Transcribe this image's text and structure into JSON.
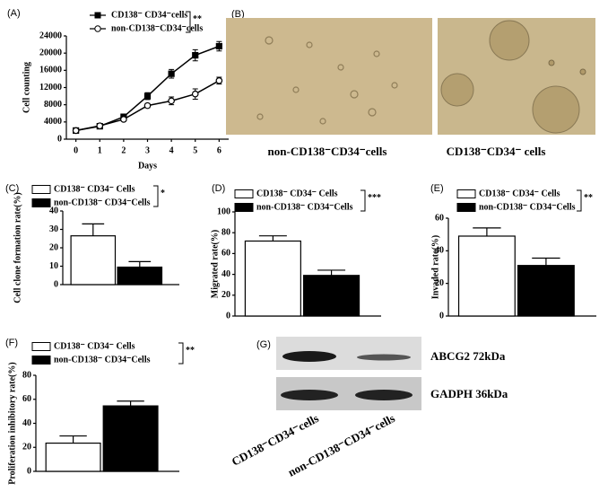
{
  "chart_data": [
    {
      "type": "line",
      "label": "(A)",
      "xlabel": "Days",
      "ylabel": "Cell counting",
      "significance": "**",
      "x": [
        0,
        1,
        2,
        3,
        4,
        5,
        6
      ],
      "xlim": [
        -0.4,
        6.4
      ],
      "xticks": [
        0,
        1,
        2,
        3,
        4,
        5,
        6
      ],
      "ylim": [
        0,
        24000
      ],
      "yticks": [
        0,
        4000,
        8000,
        12000,
        16000,
        20000,
        24000
      ],
      "series": [
        {
          "name": "CD138⁻ CD34⁻cells",
          "color": "#000000",
          "marker": "square",
          "marker_fill": "#000000",
          "values": [
            2000,
            3000,
            5200,
            10000,
            15200,
            19500,
            21600
          ],
          "errors": [
            300,
            400,
            500,
            800,
            1000,
            1300,
            1100
          ]
        },
        {
          "name": "non-CD138⁻CD34⁻cells",
          "color": "#000000",
          "marker": "circle",
          "marker_fill": "#ffffff",
          "values": [
            2000,
            3100,
            4600,
            7800,
            8900,
            10500,
            13600
          ],
          "errors": [
            200,
            300,
            400,
            500,
            900,
            1200,
            800
          ]
        }
      ]
    },
    {
      "type": "bar",
      "label": "(C)",
      "ylabel": "Cell clone formation rate(%)",
      "significance": "*",
      "ylim": [
        0,
        40
      ],
      "yticks": [
        0,
        10,
        20,
        30,
        40
      ],
      "series": [
        {
          "name": "CD138⁻ CD34⁻ Cells",
          "color": "#ffffff",
          "values": [
            26.5
          ],
          "errors": [
            6.5
          ]
        },
        {
          "name": "non-CD138⁻ CD34⁻Cells",
          "color": "#000000",
          "values": [
            9.5
          ],
          "errors": [
            3
          ]
        }
      ]
    },
    {
      "type": "bar",
      "label": "(D)",
      "ylabel": "Migrated rate(%)",
      "significance": "***",
      "ylim": [
        0,
        100
      ],
      "yticks": [
        0,
        20,
        40,
        60,
        80,
        100
      ],
      "series": [
        {
          "name": "CD138⁻ CD34⁻ Cells",
          "color": "#ffffff",
          "values": [
            72
          ],
          "errors": [
            5
          ]
        },
        {
          "name": "non-CD138⁻ CD34⁻Cells",
          "color": "#000000",
          "values": [
            39
          ],
          "errors": [
            5
          ]
        }
      ]
    },
    {
      "type": "bar",
      "label": "(E)",
      "ylabel": "Invaded rate(%)",
      "significance": "**",
      "ylim": [
        0,
        60
      ],
      "yticks": [
        0,
        20,
        40,
        60
      ],
      "series": [
        {
          "name": "CD138⁻ CD34⁻ Cells",
          "color": "#ffffff",
          "values": [
            49
          ],
          "errors": [
            5
          ]
        },
        {
          "name": "non-CD138⁻ CD34⁻Cells",
          "color": "#000000",
          "values": [
            31
          ],
          "errors": [
            4.5
          ]
        }
      ]
    },
    {
      "type": "bar",
      "label": "(F)",
      "ylabel": "Proliferation inhibitory rate(%)",
      "significance": "**",
      "ylim": [
        0,
        80
      ],
      "yticks": [
        0,
        20,
        40,
        60,
        80
      ],
      "series": [
        {
          "name": "CD138⁻ CD34⁻ Cells",
          "color": "#ffffff",
          "values": [
            23.5
          ],
          "errors": [
            6
          ]
        },
        {
          "name": "non-CD138⁻ CD34⁻Cells",
          "color": "#000000",
          "values": [
            54.5
          ],
          "errors": [
            4
          ]
        }
      ]
    }
  ],
  "micrographs": {
    "label": "(B)",
    "captions": [
      "non-CD138⁻CD34⁻cells",
      "CD138⁻CD34⁻ cells"
    ]
  },
  "blot": {
    "label": "(G)",
    "bands": [
      "ABCG2 72kDa",
      "GADPH 36kDa"
    ],
    "lanes": [
      "CD138⁻CD34⁻cells",
      "non-CD138⁻CD34⁻cells"
    ]
  }
}
